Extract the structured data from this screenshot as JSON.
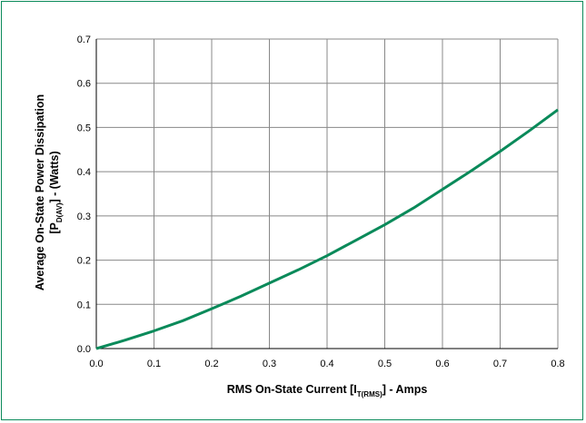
{
  "chart_data": {
    "type": "line",
    "xlabel": {
      "main": "RMS On-State Current [I",
      "sub": "T(RMS)",
      "tail": "] - Amps"
    },
    "ylabel": {
      "line1": "Average On-State Power Dissipation",
      "line2_main": "[P",
      "line2_sub": "D(AV)",
      "line2_tail": "] - (Watts)"
    },
    "xlim": [
      0.0,
      0.8
    ],
    "ylim": [
      0.0,
      0.7
    ],
    "x_ticks": [
      "0.0",
      "0.1",
      "0.2",
      "0.3",
      "0.4",
      "0.5",
      "0.6",
      "0.7",
      "0.8"
    ],
    "y_ticks": [
      "0.0",
      "0.1",
      "0.2",
      "0.3",
      "0.4",
      "0.5",
      "0.6",
      "0.7"
    ],
    "grid": true,
    "series": [
      {
        "color": "#0a8a5a",
        "x": [
          0.0,
          0.05,
          0.1,
          0.15,
          0.2,
          0.25,
          0.3,
          0.35,
          0.4,
          0.45,
          0.5,
          0.55,
          0.6,
          0.65,
          0.7,
          0.75,
          0.8
        ],
        "y": [
          0.0,
          0.019,
          0.04,
          0.063,
          0.09,
          0.118,
          0.148,
          0.178,
          0.21,
          0.245,
          0.28,
          0.318,
          0.36,
          0.402,
          0.446,
          0.492,
          0.54
        ]
      }
    ]
  },
  "colors": {
    "frame": "#0a8a5a",
    "grid": "#888888",
    "line": "#0a8a5a"
  }
}
